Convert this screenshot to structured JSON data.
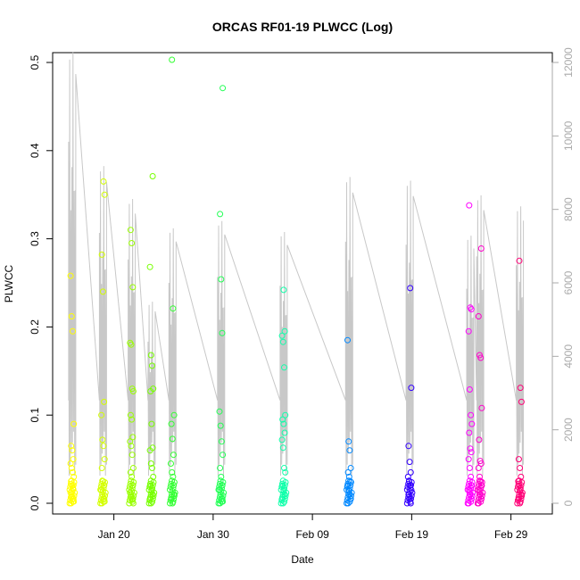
{
  "chart_data": {
    "type": "scatter",
    "title": "ORCAS RF01-19 PLWCC (Log)",
    "xlabel": "Date",
    "ylabel": "PLWCC",
    "x_ticks": [
      {
        "date": "2016-01-20",
        "label": "Jan 20"
      },
      {
        "date": "2016-01-30",
        "label": "Jan 30"
      },
      {
        "date": "2016-02-09",
        "label": "Feb 09"
      },
      {
        "date": "2016-02-19",
        "label": "Feb 19"
      },
      {
        "date": "2016-02-29",
        "label": "Feb 29"
      }
    ],
    "xlim": [
      "2016-01-15",
      "2016-03-03"
    ],
    "ylim": [
      0,
      0.5
    ],
    "y_ticks": [
      0.0,
      0.1,
      0.2,
      0.3,
      0.4,
      0.5
    ],
    "y_tick_labels": [
      "0.0",
      "0.1",
      "0.2",
      "0.3",
      "0.4",
      "0.5"
    ],
    "y2lim": [
      0,
      12000
    ],
    "y2_ticks": [
      0,
      2000,
      4000,
      6000,
      8000,
      10000,
      12000
    ],
    "y2_tick_labels": [
      "0",
      "2000",
      "4000",
      "6000",
      "8000",
      "10000",
      "12000"
    ],
    "grid": false,
    "legend": "none",
    "altitude_line_color": "#c8c8c8",
    "flights": [
      {
        "date": "2016-01-15.8",
        "color": "#ffff00",
        "values": [
          0.258,
          0.212,
          0.195,
          0.09,
          0.065,
          0.06,
          0.05,
          0.045,
          0.04,
          0.035,
          0.03,
          0.025,
          0.02,
          0.016,
          0.012,
          0.008,
          0.005,
          0.002,
          0.0
        ]
      },
      {
        "date": "2016-01-18.9",
        "color": "#d4ff00",
        "values": [
          0.365,
          0.35,
          0.282,
          0.24,
          0.115,
          0.1,
          0.072,
          0.065,
          0.05,
          0.04,
          0.025,
          0.02,
          0.015,
          0.01,
          0.005,
          0.002,
          0.0
        ]
      },
      {
        "date": "2016-01-21.8",
        "color": "#99ff00",
        "values": [
          0.31,
          0.295,
          0.245,
          0.182,
          0.18,
          0.13,
          0.127,
          0.1,
          0.095,
          0.075,
          0.07,
          0.065,
          0.055,
          0.04,
          0.035,
          0.03,
          0.02,
          0.012,
          0.008,
          0.004,
          0.0
        ]
      },
      {
        "date": "2016-01-23.8",
        "color": "#77ff00",
        "values": [
          0.371,
          0.268,
          0.168,
          0.156,
          0.13,
          0.127,
          0.09,
          0.063,
          0.06,
          0.045,
          0.04,
          0.03,
          0.02,
          0.015,
          0.01,
          0.005,
          0.0
        ]
      },
      {
        "date": "2016-01-25.9",
        "color": "#33ff33",
        "values": [
          0.503,
          0.221,
          0.1,
          0.09,
          0.073,
          0.055,
          0.045,
          0.035,
          0.03,
          0.01,
          0.005,
          0.0
        ]
      },
      {
        "date": "2016-01-30.8",
        "color": "#22ff55",
        "values": [
          0.471,
          0.328,
          0.254,
          0.193,
          0.104,
          0.088,
          0.07,
          0.055,
          0.04,
          0.03,
          0.02,
          0.015,
          0.01,
          0.005,
          0.002,
          0.0
        ]
      },
      {
        "date": "2016-02-06.1",
        "color": "#11ffaa",
        "values": [
          0.242,
          0.195,
          0.19,
          0.183,
          0.154,
          0.1,
          0.095,
          0.09,
          0.08,
          0.072,
          0.063,
          0.04,
          0.035,
          0.02,
          0.015,
          0.01,
          0.005,
          0.0
        ]
      },
      {
        "date": "2016-02-12.7",
        "color": "#0088ff",
        "values": [
          0.185,
          0.07,
          0.06,
          0.04,
          0.035,
          0.03,
          0.025,
          0.02,
          0.015,
          0.01,
          0.005,
          0.0
        ]
      },
      {
        "date": "2016-02-18.8",
        "color": "#3300ff",
        "values": [
          0.244,
          0.131,
          0.065,
          0.047,
          0.035,
          0.03,
          0.025,
          0.02,
          0.015,
          0.01,
          0.005,
          0.0
        ]
      },
      {
        "date": "2016-02-24.9",
        "color": "#ff00ff",
        "values": [
          0.338,
          0.222,
          0.22,
          0.195,
          0.129,
          0.1,
          0.09,
          0.08,
          0.062,
          0.058,
          0.05,
          0.04,
          0.03,
          0.02,
          0.015,
          0.01,
          0.005,
          0.0
        ]
      },
      {
        "date": "2016-02-25.9",
        "color": "#ff00cc",
        "values": [
          0.289,
          0.212,
          0.168,
          0.165,
          0.108,
          0.072,
          0.048,
          0.045,
          0.04,
          0.03,
          0.025,
          0.02,
          0.015,
          0.01,
          0.005,
          0.0
        ]
      },
      {
        "date": "2016-02-29.9",
        "color": "#ff0077",
        "values": [
          0.275,
          0.131,
          0.115,
          0.05,
          0.04,
          0.03,
          0.025,
          0.02,
          0.015,
          0.01,
          0.005,
          0.0
        ]
      }
    ]
  }
}
